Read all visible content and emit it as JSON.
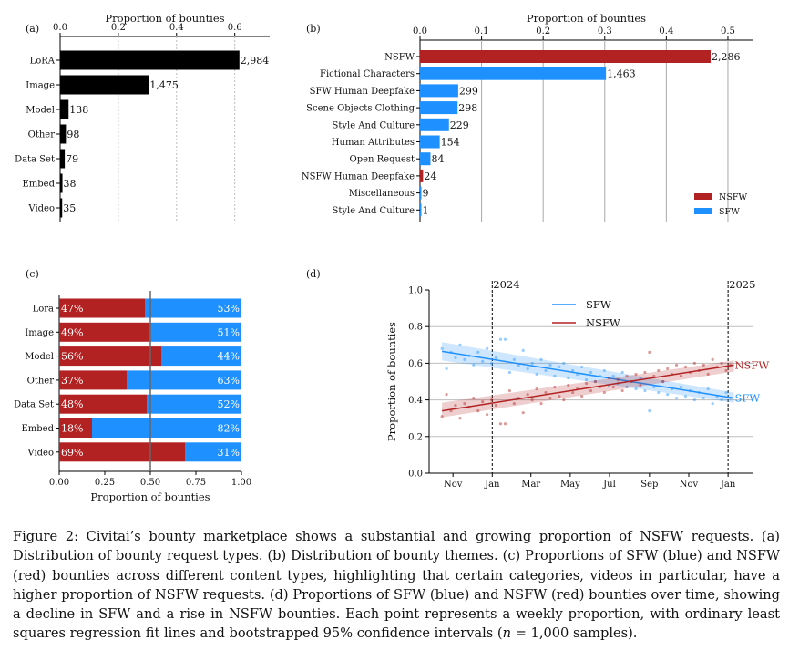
{
  "colors": {
    "black": "#000000",
    "nsfw": "#b22222",
    "sfw": "#1e90ff"
  },
  "chart_data": [
    {
      "panel": "(a)",
      "type": "bar",
      "orientation": "horizontal",
      "xlabel": "Proportion of bounties",
      "xlim": [
        0,
        0.72
      ],
      "xticks": [
        "0.0",
        "0.2",
        "0.4",
        "0.6"
      ],
      "xtick_values": [
        0,
        0.2,
        0.4,
        0.6
      ],
      "categories": [
        "LoRA",
        "Image",
        "Model",
        "Other",
        "Data Set",
        "Embed",
        "Video"
      ],
      "values": [
        0.616,
        0.305,
        0.029,
        0.02,
        0.016,
        0.008,
        0.007
      ],
      "labels": [
        "2,984",
        "1,475",
        "138",
        "98",
        "79",
        "38",
        "35"
      ]
    },
    {
      "panel": "(b)",
      "type": "bar",
      "orientation": "horizontal",
      "xlabel": "Proportion of bounties",
      "xlim": [
        0,
        0.54
      ],
      "xticks": [
        "0.0",
        "0.1",
        "0.2",
        "0.3",
        "0.4",
        "0.5"
      ],
      "xtick_values": [
        0,
        0.1,
        0.2,
        0.3,
        0.4,
        0.5
      ],
      "categories": [
        "NSFW",
        "Fictional Characters",
        "SFW Human Deepfake",
        "Scene Objects Clothing",
        "Style And Culture",
        "Human Attributes",
        "Open Request",
        "NSFW Human Deepfake",
        "Miscellaneous",
        "Style And  Culture"
      ],
      "values": [
        0.472,
        0.302,
        0.062,
        0.061,
        0.047,
        0.032,
        0.017,
        0.005,
        0.002,
        0.0005
      ],
      "labels": [
        "2,286",
        "1,463",
        "299",
        "298",
        "229",
        "154",
        "84",
        "24",
        "9",
        "1"
      ],
      "groups": [
        "NSFW",
        "SFW",
        "SFW",
        "SFW",
        "SFW",
        "SFW",
        "SFW",
        "NSFW",
        "SFW",
        "SFW"
      ],
      "legend": [
        "NSFW",
        "SFW"
      ],
      "legend_position": "lower-right"
    },
    {
      "panel": "(c)",
      "type": "bar",
      "orientation": "horizontal-stacked",
      "xlabel": "Proportion of bounties",
      "xlim": [
        0,
        1
      ],
      "xticks": [
        "0.00",
        "0.25",
        "0.50",
        "0.75",
        "1.00"
      ],
      "xtick_values": [
        0,
        0.25,
        0.5,
        0.75,
        1
      ],
      "categories": [
        "Lora",
        "Image",
        "Model",
        "Other",
        "Data Set",
        "Embed",
        "Video"
      ],
      "series": [
        {
          "name": "NSFW",
          "values": [
            0.47,
            0.49,
            0.56,
            0.37,
            0.48,
            0.18,
            0.69
          ],
          "labels": [
            "47%",
            "49%",
            "56%",
            "37%",
            "48%",
            "18%",
            "69%"
          ]
        },
        {
          "name": "SFW",
          "values": [
            0.53,
            0.51,
            0.44,
            0.63,
            0.52,
            0.82,
            0.31
          ],
          "labels": [
            "53%",
            "51%",
            "44%",
            "63%",
            "52%",
            "82%",
            "31%"
          ]
        }
      ],
      "reference_line": 0.5
    },
    {
      "panel": "(d)",
      "type": "scatter",
      "ylabel": "Proportion of bounties",
      "ylim": [
        0,
        1
      ],
      "yticks": [
        "0.0",
        "0.2",
        "0.4",
        "0.6",
        "0.8",
        "1.0"
      ],
      "ytick_values": [
        0,
        0.2,
        0.4,
        0.6,
        0.8,
        1.0
      ],
      "xlim": [
        "2023-09-25",
        "2025-02-08"
      ],
      "xticks": [
        "Nov",
        "Jan",
        "Mar",
        "May",
        "Jul",
        "Sep",
        "Nov",
        "Jan"
      ],
      "xtick_dates": [
        "2023-11-01",
        "2024-01-01",
        "2024-03-01",
        "2024-05-01",
        "2024-07-01",
        "2024-09-01",
        "2024-11-01",
        "2025-01-01"
      ],
      "grid": "horizontal",
      "vlines": [
        {
          "date": "2024-01-01",
          "label": "2024"
        },
        {
          "date": "2025-01-01",
          "label": "2025"
        }
      ],
      "legend": [
        "SFW",
        "NSFW"
      ],
      "legend_position": "top-center",
      "series": [
        {
          "name": "SFW",
          "color": "#1e90ff",
          "fit_start": {
            "date": "2023-10-15",
            "value": 0.665
          },
          "fit_end": {
            "date": "2025-01-10",
            "value": 0.41
          },
          "ci_start": [
            0.615,
            0.715
          ],
          "ci_end": [
            0.385,
            0.44
          ],
          "end_label": "SFW",
          "points": [
            [
              "2023-10-15",
              0.68
            ],
            [
              "2023-10-22",
              0.57
            ],
            [
              "2023-10-29",
              0.66
            ],
            [
              "2023-11-05",
              0.63
            ],
            [
              "2023-11-12",
              0.7
            ],
            [
              "2023-11-19",
              0.62
            ],
            [
              "2023-11-26",
              0.64
            ],
            [
              "2023-12-03",
              0.59
            ],
            [
              "2023-12-10",
              0.66
            ],
            [
              "2023-12-17",
              0.61
            ],
            [
              "2023-12-24",
              0.68
            ],
            [
              "2023-12-31",
              0.6
            ],
            [
              "2024-01-07",
              0.63
            ],
            [
              "2024-01-14",
              0.73
            ],
            [
              "2024-01-21",
              0.73
            ],
            [
              "2024-01-28",
              0.55
            ],
            [
              "2024-02-04",
              0.62
            ],
            [
              "2024-02-11",
              0.59
            ],
            [
              "2024-02-18",
              0.67
            ],
            [
              "2024-02-25",
              0.57
            ],
            [
              "2024-03-03",
              0.6
            ],
            [
              "2024-03-10",
              0.54
            ],
            [
              "2024-03-17",
              0.62
            ],
            [
              "2024-03-24",
              0.56
            ],
            [
              "2024-03-31",
              0.59
            ],
            [
              "2024-04-07",
              0.53
            ],
            [
              "2024-04-14",
              0.58
            ],
            [
              "2024-04-21",
              0.6
            ],
            [
              "2024-04-28",
              0.52
            ],
            [
              "2024-05-05",
              0.56
            ],
            [
              "2024-05-12",
              0.54
            ],
            [
              "2024-05-19",
              0.58
            ],
            [
              "2024-05-26",
              0.51
            ],
            [
              "2024-06-02",
              0.55
            ],
            [
              "2024-06-09",
              0.5
            ],
            [
              "2024-06-16",
              0.53
            ],
            [
              "2024-06-23",
              0.56
            ],
            [
              "2024-06-30",
              0.48
            ],
            [
              "2024-07-07",
              0.53
            ],
            [
              "2024-07-14",
              0.49
            ],
            [
              "2024-07-21",
              0.55
            ],
            [
              "2024-07-28",
              0.47
            ],
            [
              "2024-08-04",
              0.5
            ],
            [
              "2024-08-11",
              0.46
            ],
            [
              "2024-08-18",
              0.52
            ],
            [
              "2024-08-25",
              0.45
            ],
            [
              "2024-09-01",
              0.34
            ],
            [
              "2024-09-08",
              0.47
            ],
            [
              "2024-09-15",
              0.44
            ],
            [
              "2024-09-22",
              0.5
            ],
            [
              "2024-09-29",
              0.43
            ],
            [
              "2024-10-06",
              0.46
            ],
            [
              "2024-10-13",
              0.41
            ],
            [
              "2024-10-20",
              0.47
            ],
            [
              "2024-10-27",
              0.42
            ],
            [
              "2024-11-03",
              0.45
            ],
            [
              "2024-11-10",
              0.4
            ],
            [
              "2024-11-17",
              0.44
            ],
            [
              "2024-11-24",
              0.41
            ],
            [
              "2024-12-01",
              0.46
            ],
            [
              "2024-12-08",
              0.38
            ],
            [
              "2024-12-15",
              0.42
            ],
            [
              "2024-12-22",
              0.4
            ],
            [
              "2024-12-29",
              0.44
            ],
            [
              "2025-01-05",
              0.41
            ]
          ]
        },
        {
          "name": "NSFW",
          "color": "#b22222",
          "fit_start": {
            "date": "2023-10-15",
            "value": 0.34
          },
          "fit_end": {
            "date": "2025-01-10",
            "value": 0.59
          },
          "ci_start": [
            0.305,
            0.385
          ],
          "ci_end": [
            0.555,
            0.615
          ],
          "end_label": "NSFW",
          "points": [
            [
              "2023-10-15",
              0.31
            ],
            [
              "2023-10-22",
              0.43
            ],
            [
              "2023-10-29",
              0.34
            ],
            [
              "2023-11-05",
              0.37
            ],
            [
              "2023-11-12",
              0.3
            ],
            [
              "2023-11-19",
              0.38
            ],
            [
              "2023-11-26",
              0.36
            ],
            [
              "2023-12-03",
              0.41
            ],
            [
              "2023-12-10",
              0.34
            ],
            [
              "2023-12-17",
              0.39
            ],
            [
              "2023-12-24",
              0.32
            ],
            [
              "2023-12-31",
              0.4
            ],
            [
              "2024-01-07",
              0.37
            ],
            [
              "2024-01-14",
              0.27
            ],
            [
              "2024-01-21",
              0.27
            ],
            [
              "2024-01-28",
              0.45
            ],
            [
              "2024-02-04",
              0.38
            ],
            [
              "2024-02-11",
              0.41
            ],
            [
              "2024-02-18",
              0.33
            ],
            [
              "2024-02-25",
              0.43
            ],
            [
              "2024-03-03",
              0.4
            ],
            [
              "2024-03-10",
              0.46
            ],
            [
              "2024-03-17",
              0.38
            ],
            [
              "2024-03-24",
              0.44
            ],
            [
              "2024-03-31",
              0.41
            ],
            [
              "2024-04-07",
              0.47
            ],
            [
              "2024-04-14",
              0.42
            ],
            [
              "2024-04-21",
              0.4
            ],
            [
              "2024-04-28",
              0.48
            ],
            [
              "2024-05-05",
              0.44
            ],
            [
              "2024-05-12",
              0.46
            ],
            [
              "2024-05-19",
              0.42
            ],
            [
              "2024-05-26",
              0.49
            ],
            [
              "2024-06-02",
              0.45
            ],
            [
              "2024-06-09",
              0.5
            ],
            [
              "2024-06-16",
              0.47
            ],
            [
              "2024-06-23",
              0.44
            ],
            [
              "2024-06-30",
              0.52
            ],
            [
              "2024-07-07",
              0.47
            ],
            [
              "2024-07-14",
              0.51
            ],
            [
              "2024-07-21",
              0.45
            ],
            [
              "2024-07-28",
              0.53
            ],
            [
              "2024-08-04",
              0.5
            ],
            [
              "2024-08-11",
              0.54
            ],
            [
              "2024-08-18",
              0.48
            ],
            [
              "2024-08-25",
              0.55
            ],
            [
              "2024-09-01",
              0.66
            ],
            [
              "2024-09-08",
              0.53
            ],
            [
              "2024-09-15",
              0.56
            ],
            [
              "2024-09-22",
              0.5
            ],
            [
              "2024-09-29",
              0.57
            ],
            [
              "2024-10-06",
              0.54
            ],
            [
              "2024-10-13",
              0.59
            ],
            [
              "2024-10-20",
              0.53
            ],
            [
              "2024-10-27",
              0.58
            ],
            [
              "2024-11-03",
              0.55
            ],
            [
              "2024-11-10",
              0.6
            ],
            [
              "2024-11-17",
              0.56
            ],
            [
              "2024-11-24",
              0.59
            ],
            [
              "2024-12-01",
              0.54
            ],
            [
              "2024-12-08",
              0.62
            ],
            [
              "2024-12-15",
              0.58
            ],
            [
              "2024-12-22",
              0.6
            ],
            [
              "2024-12-29",
              0.56
            ],
            [
              "2025-01-05",
              0.59
            ]
          ]
        }
      ]
    }
  ],
  "caption": {
    "figure_label": "Figure 2:",
    "text_before_n": " Civitai’s bounty marketplace shows a substantial and growing proportion of NSFW requests. (a) Distribution of bounty request types. (b) Distribution of bounty themes. (c) Proportions of SFW (blue) and NSFW (red) bounties across different content types, highlighting that certain categories, videos in particular, have a higher proportion of NSFW requests. (d) Proportions of SFW (blue) and NSFW (red) bounties over time, showing a decline in SFW and a rise in NSFW bounties. Each point represents a weekly proportion, with ordinary least squares regression fit lines and bootstrapped 95% confidence intervals (",
    "n_symbol": "n",
    "n_value": " = 1,000 samples)."
  }
}
